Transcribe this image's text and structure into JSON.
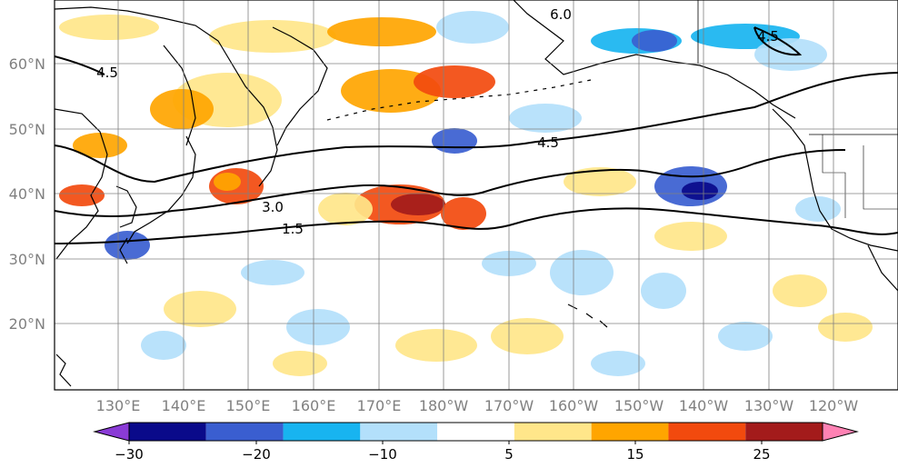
{
  "map": {
    "lat_labels": [
      "60°N",
      "50°N",
      "40°N",
      "30°N",
      "20°N"
    ],
    "lon_labels": [
      "130°E",
      "140°E",
      "150°E",
      "160°E",
      "170°E",
      "180°W",
      "170°W",
      "160°W",
      "150°W",
      "140°W",
      "130°W",
      "120°W"
    ],
    "contour_labels": [
      "4.5",
      "4.5",
      "4.5",
      "3.0",
      "1.5",
      "6.0"
    ],
    "contour_color": "#000000",
    "gridline_color": "#808080",
    "coastline_color": "#000000"
  },
  "colorbar": {
    "tick_labels": [
      "−30",
      "−20",
      "−10",
      "5",
      "15",
      "25"
    ],
    "bins": [
      {
        "color": "#8a3bd6"
      },
      {
        "color": "#0a0a8a"
      },
      {
        "color": "#3a5ed0"
      },
      {
        "color": "#18b4f0"
      },
      {
        "color": "#b3e0fb"
      },
      {
        "color": "#ffffff"
      },
      {
        "color": "#ffe68a"
      },
      {
        "color": "#ffa500"
      },
      {
        "color": "#f24a0e"
      },
      {
        "color": "#a31b1b"
      },
      {
        "color": "#ff82b4"
      }
    ]
  }
}
